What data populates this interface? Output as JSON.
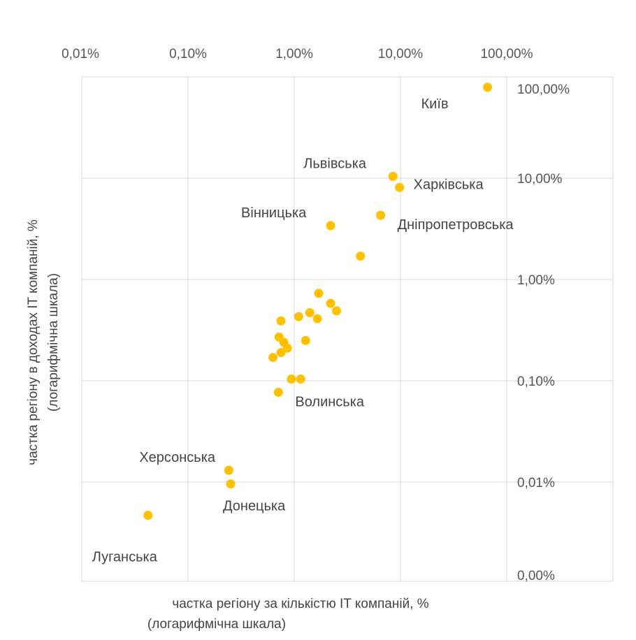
{
  "chart_data": {
    "type": "scatter",
    "x_scale": "log",
    "y_scale": "log",
    "xlim": [
      0.0001,
      1
    ],
    "ylim": [
      1e-05,
      1
    ],
    "grid": true,
    "marker_color": "#FFC000",
    "x_ticks": [
      {
        "value": 0.0001,
        "label": "0,01%"
      },
      {
        "value": 0.001,
        "label": "0,10%"
      },
      {
        "value": 0.01,
        "label": "1,00%"
      },
      {
        "value": 0.1,
        "label": "10,00%"
      },
      {
        "value": 1,
        "label": "100,00%"
      }
    ],
    "y_ticks": [
      {
        "value": 1,
        "label": "100,00%"
      },
      {
        "value": 0.1,
        "label": "10,00%"
      },
      {
        "value": 0.01,
        "label": "1,00%"
      },
      {
        "value": 0.001,
        "label": "0,10%"
      },
      {
        "value": 0.0001,
        "label": "0,01%"
      },
      {
        "value": 1e-05,
        "label": "0,00%"
      }
    ],
    "xlabel": [
      "частка регіону за кількістю IT компаній, %",
      "(логарифмічна шкала)"
    ],
    "ylabel": [
      "частка регіону в доходах IT компаній, %",
      "(логарифмічна шкала)"
    ],
    "points": [
      {
        "x": 0.66,
        "y": 0.79,
        "label": "Київ",
        "label_pos": "below-left"
      },
      {
        "x": 0.085,
        "y": 0.104,
        "label": "Львівська",
        "label_pos": "above-left"
      },
      {
        "x": 0.098,
        "y": 0.081,
        "label": "Харківська",
        "label_pos": "right"
      },
      {
        "x": 0.065,
        "y": 0.043,
        "label": "Дніпропетровська",
        "label_pos": "below-right"
      },
      {
        "x": 0.022,
        "y": 0.034,
        "label": "Вінницька",
        "label_pos": "above-left"
      },
      {
        "x": 0.042,
        "y": 0.017
      },
      {
        "x": 0.017,
        "y": 0.0073
      },
      {
        "x": 0.022,
        "y": 0.0058
      },
      {
        "x": 0.025,
        "y": 0.0049
      },
      {
        "x": 0.014,
        "y": 0.0047
      },
      {
        "x": 0.0165,
        "y": 0.0041
      },
      {
        "x": 0.011,
        "y": 0.0043
      },
      {
        "x": 0.0075,
        "y": 0.0039
      },
      {
        "x": 0.0072,
        "y": 0.0027
      },
      {
        "x": 0.008,
        "y": 0.0024
      },
      {
        "x": 0.0086,
        "y": 0.0021
      },
      {
        "x": 0.0075,
        "y": 0.0019
      },
      {
        "x": 0.0063,
        "y": 0.0017
      },
      {
        "x": 0.0128,
        "y": 0.0025
      },
      {
        "x": 0.0094,
        "y": 0.00104
      },
      {
        "x": 0.0115,
        "y": 0.00104
      },
      {
        "x": 0.0071,
        "y": 0.00077,
        "label": "Волинська",
        "label_pos": "below-right"
      },
      {
        "x": 0.00242,
        "y": 0.000131,
        "label": "Херсонська",
        "label_pos": "above-left"
      },
      {
        "x": 0.00252,
        "y": 9.6e-05,
        "label": "Донецька",
        "label_pos": "below"
      },
      {
        "x": 0.00042,
        "y": 4.7e-05,
        "label": "Луганська",
        "label_pos": "far-below-left"
      }
    ]
  }
}
